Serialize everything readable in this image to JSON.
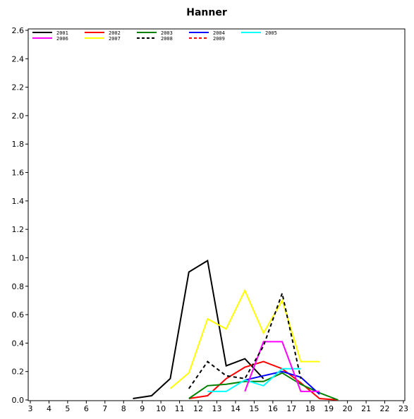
{
  "chart_data": {
    "type": "line",
    "title": "Hanner",
    "xlabel": "",
    "ylabel": "",
    "xlim": [
      3,
      23
    ],
    "ylim": [
      0,
      2.6
    ],
    "x_ticks": [
      3,
      4,
      5,
      6,
      7,
      8,
      9,
      10,
      11,
      12,
      13,
      14,
      15,
      16,
      17,
      18,
      19,
      20,
      21,
      22,
      23
    ],
    "y_ticks": [
      "0.0",
      "0.2",
      "0.4",
      "0.6",
      "0.8",
      "1.0",
      "1.2",
      "1.4",
      "1.6",
      "1.8",
      "2.0",
      "2.2",
      "2.4",
      "2.6"
    ],
    "grid": false,
    "legend_position": "top-left",
    "series": [
      {
        "name": "2001",
        "color": "#000000",
        "dash": "solid",
        "x": [
          8.5,
          9.5,
          10.5,
          11.5,
          12.5,
          13.5,
          14.5,
          15.5
        ],
        "y": [
          0.01,
          0.03,
          0.15,
          0.9,
          0.98,
          0.24,
          0.29,
          0.15
        ]
      },
      {
        "name": "2002",
        "color": "#ff0000",
        "dash": "solid",
        "x": [
          11.5,
          12.5,
          13.5,
          14.5,
          15.5,
          16.5,
          17.5,
          18.5,
          19.5
        ],
        "y": [
          0.01,
          0.03,
          0.15,
          0.23,
          0.27,
          0.22,
          0.12,
          0.01,
          0.0
        ]
      },
      {
        "name": "2003",
        "color": "#008000",
        "dash": "solid",
        "x": [
          11.5,
          12.5,
          13.5,
          14.5,
          15.5,
          16.5,
          17.5,
          18.5,
          19.5
        ],
        "y": [
          0.01,
          0.1,
          0.11,
          0.13,
          0.13,
          0.19,
          0.11,
          0.05,
          0.0
        ]
      },
      {
        "name": "2004",
        "color": "#0000ff",
        "dash": "solid",
        "x": [
          14.5,
          15.5,
          16.5,
          17.5,
          18.5
        ],
        "y": [
          0.14,
          0.17,
          0.2,
          0.16,
          0.04
        ]
      },
      {
        "name": "2005",
        "color": "#00ffff",
        "dash": "solid",
        "x": [
          12.5,
          13.5,
          14.5,
          15.5,
          16.5,
          17.5
        ],
        "y": [
          0.06,
          0.06,
          0.14,
          0.1,
          0.22,
          0.22
        ]
      },
      {
        "name": "2006",
        "color": "#ff00ff",
        "dash": "solid",
        "x": [
          14.5,
          15.5,
          16.5,
          17.5,
          18.5
        ],
        "y": [
          0.06,
          0.41,
          0.41,
          0.06,
          0.06
        ]
      },
      {
        "name": "2007",
        "color": "#ffff00",
        "dash": "solid",
        "x": [
          10.5,
          11.5,
          12.5,
          13.5,
          14.5,
          15.5,
          16.5,
          17.5,
          18.5
        ],
        "y": [
          0.08,
          0.19,
          0.57,
          0.5,
          0.77,
          0.47,
          0.7,
          0.27,
          0.27
        ]
      },
      {
        "name": "2008",
        "color": "#000000",
        "dash": "dashed",
        "x": [
          11.5,
          12.5,
          13.5,
          14.5,
          15.5,
          16.5,
          17.5
        ],
        "y": [
          0.08,
          0.27,
          0.17,
          0.15,
          0.38,
          0.75,
          0.15
        ]
      },
      {
        "name": "2009",
        "color": "#ff0000",
        "dash": "dashed",
        "x": [],
        "y": []
      }
    ]
  }
}
